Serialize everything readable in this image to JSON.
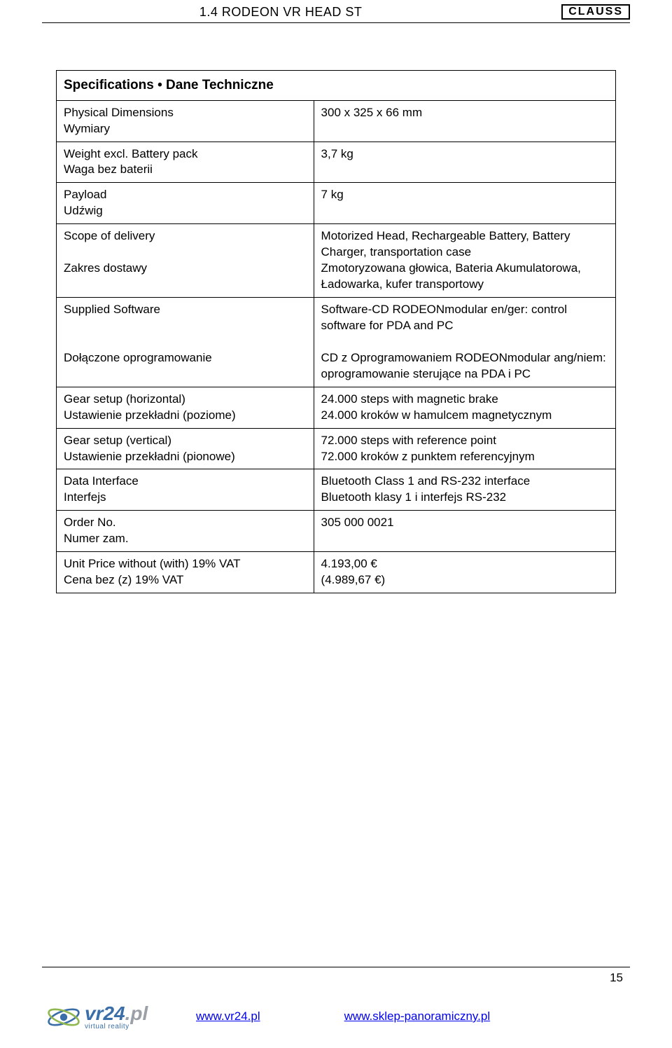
{
  "header": {
    "title": "1.4 RODEON VR HEAD ST",
    "brand": "CLAUSS"
  },
  "spec_table": {
    "title": "Specifications • Dane Techniczne",
    "rows": [
      {
        "left": "Physical Dimensions\nWymiary",
        "right": "300 x 325 x 66 mm"
      },
      {
        "left": "Weight excl. Battery pack\nWaga bez baterii",
        "right": "3,7 kg"
      },
      {
        "left": "Payload\nUdźwig",
        "right": "7 kg"
      },
      {
        "left": "Scope of delivery\n\nZakres dostawy",
        "right": "Motorized Head, Rechargeable Battery, Battery Charger, transportation case\nZmotoryzowana głowica, Bateria Akumulatorowa, Ładowarka, kufer transportowy"
      },
      {
        "left": "Supplied Software\n\n\nDołączone oprogramowanie",
        "right": "Software-CD RODEONmodular en/ger: control software for PDA and PC\n\nCD z Oprogramowaniem RODEONmodular ang/niem: oprogramowanie sterujące na PDA i PC"
      },
      {
        "left": "Gear setup (horizontal)\nUstawienie przekładni (poziome)",
        "right": "24.000 steps with magnetic brake\n24.000 kroków w hamulcem magnetycznym"
      },
      {
        "left": "Gear setup (vertical)\nUstawienie przekładni (pionowe)",
        "right": "72.000 steps with reference point\n72.000 kroków z punktem referencyjnym"
      },
      {
        "left": "Data Interface\nInterfejs",
        "right": "Bluetooth Class 1 and RS-232 interface\nBluetooth klasy 1 i interfejs RS-232"
      },
      {
        "left": "Order No.\nNumer zam.",
        "right": "305 000 0021"
      },
      {
        "left": "Unit Price without (with) 19% VAT\nCena bez (z) 19% VAT",
        "right": "4.193,00 €\n(4.989,67 €)"
      }
    ]
  },
  "page_number": "15",
  "footer": {
    "logo_main": "vr24",
    "logo_pl": ".pl",
    "logo_sub": "virtual reality",
    "link1": "www.vr24.pl",
    "link2": "www.sklep-panoramiczny.pl"
  },
  "colors": {
    "link": "#0000ee",
    "logo_blue": "#3a6ea8",
    "logo_gray": "#9aa0a6"
  }
}
